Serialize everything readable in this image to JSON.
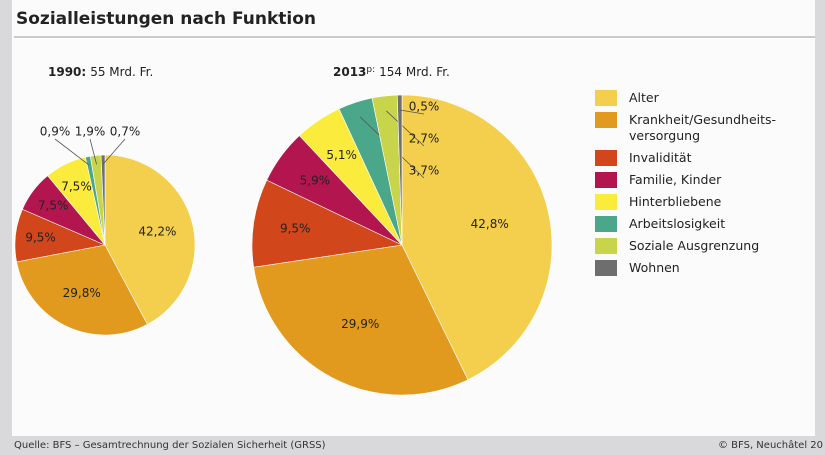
{
  "title": "Sozialleistungen nach Funktion",
  "legend": {
    "labels": [
      "Alter",
      "Krankheit/Gesundheits-versorgung",
      "Invalidität",
      "Familie, Kinder",
      "Hinterbliebene",
      "Arbeitslosigkeit",
      "Soziale Ausgrenzung",
      "Wohnen"
    ],
    "colors": [
      "#f4cf4e",
      "#e29a1e",
      "#d2461c",
      "#b3164e",
      "#faeb3c",
      "#4ba78a",
      "#c8d54a",
      "#6e6e6e"
    ]
  },
  "chart_data": [
    {
      "type": "pie",
      "year": "1990:",
      "total": "55 Mrd. Fr.",
      "values": [
        42.2,
        29.8,
        9.5,
        7.5,
        7.5,
        0.9,
        1.9,
        0.7
      ],
      "value_labels": [
        "42,2%",
        "29,8%",
        "9,5%",
        "7,5%",
        "7,5%",
        "0,9%",
        "1,9%",
        "0,7%"
      ]
    },
    {
      "type": "pie",
      "year": "2013",
      "year_note": "p:",
      "total": "154 Mrd. Fr.",
      "values": [
        42.8,
        29.9,
        9.5,
        5.9,
        5.1,
        3.7,
        2.7,
        0.5
      ],
      "value_labels": [
        "42,8%",
        "29,9%",
        "9,5%",
        "5,9%",
        "5,1%",
        "3,7%",
        "2,7%",
        "0,5%"
      ]
    }
  ],
  "source": "Quelle: BFS – Gesamtrechnung der Sozialen Sicherheit (GRSS)",
  "copyright": "© BFS, Neuchâtel 20"
}
